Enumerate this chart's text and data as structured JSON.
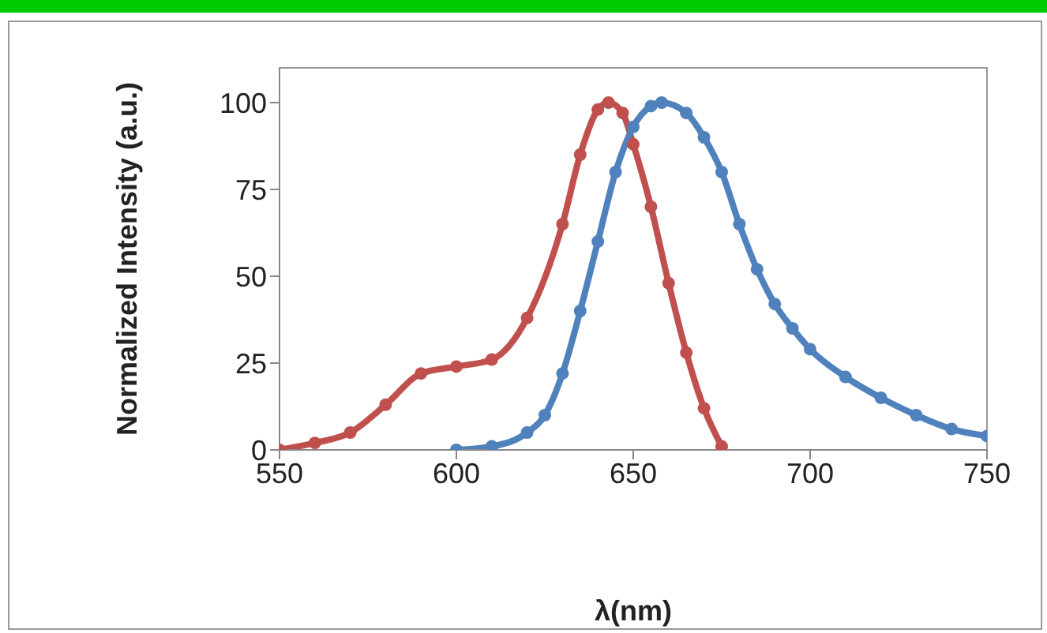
{
  "chart_data": {
    "type": "line",
    "xlabel": "λ(nm)",
    "ylabel": "Normalized Intensity (a.u.)",
    "xlim": [
      550,
      750
    ],
    "ylim": [
      0,
      110
    ],
    "xticks": [
      550,
      600,
      650,
      700,
      750
    ],
    "yticks": [
      0,
      25,
      50,
      75,
      100
    ],
    "grid": false,
    "legend": false,
    "marker": "circle",
    "series": [
      {
        "color": "#c0504d",
        "x": [
          550,
          560,
          570,
          580,
          590,
          600,
          610,
          620,
          630,
          635,
          640,
          643,
          647,
          650,
          655,
          660,
          665,
          670,
          675
        ],
        "values": [
          0,
          2,
          5,
          13,
          22,
          24,
          26,
          38,
          65,
          85,
          98,
          100,
          97,
          88,
          70,
          48,
          28,
          12,
          1
        ]
      },
      {
        "color": "#4f81bd",
        "x": [
          600,
          610,
          620,
          625,
          630,
          635,
          640,
          645,
          650,
          655,
          658,
          665,
          670,
          675,
          680,
          685,
          690,
          695,
          700,
          710,
          720,
          730,
          740,
          750
        ],
        "values": [
          0,
          1,
          5,
          10,
          22,
          40,
          60,
          80,
          93,
          99,
          100,
          97,
          90,
          80,
          65,
          52,
          42,
          35,
          29,
          21,
          15,
          10,
          6,
          4
        ]
      }
    ]
  }
}
